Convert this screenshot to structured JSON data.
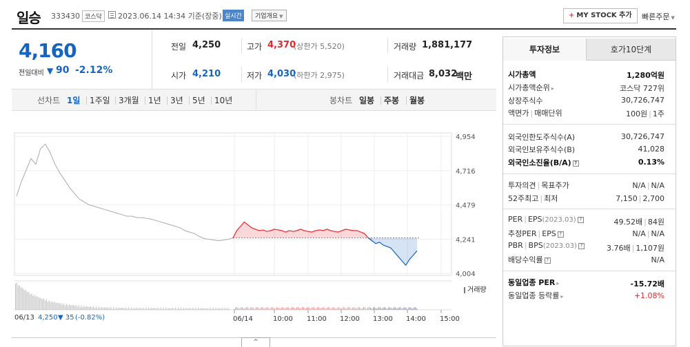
{
  "header": {
    "name": "일승",
    "code": "333430",
    "market": "코스닥",
    "datetime": "2023.06.14 14:34 기준(장중)",
    "realtime": "실시간",
    "corp_info": "기업개요",
    "mystock": "MY STOCK 추가",
    "quick_order": "빠른주문"
  },
  "price": {
    "now": "4,160",
    "prev_label": "전일대비",
    "arrow": "▼",
    "change": "90",
    "change_pct": "-2.12%",
    "color_down": "#1565c0",
    "color_up": "#e5262a"
  },
  "summary": {
    "prev_close": {
      "label": "전일",
      "value": "4,250"
    },
    "high": {
      "label": "고가",
      "value": "4,370",
      "sub": "(상한가 5,520)"
    },
    "volume": {
      "label": "거래량",
      "value": "1,881,177"
    },
    "open": {
      "label": "시가",
      "value": "4,210"
    },
    "low": {
      "label": "저가",
      "value": "4,030",
      "sub": "(하한가 2,975)"
    },
    "amount": {
      "label": "거래대금",
      "value": "8,032",
      "unit": "백만"
    }
  },
  "chart_tabs": {
    "line_label": "선차트",
    "line": [
      "1일",
      "1주일",
      "3개월",
      "1년",
      "3년",
      "5년",
      "10년"
    ],
    "selected": "1일",
    "candle_label": "봉차트",
    "candle": [
      "일봉",
      "주봉",
      "월봉"
    ]
  },
  "chart_data": {
    "type": "line",
    "y_ticks": [
      "4,954",
      "4,716",
      "4,479",
      "4,241",
      "4,004"
    ],
    "ylim": [
      4004,
      4954
    ],
    "reference": 4250,
    "x_ticks": [
      "06/13",
      "06/14",
      "10:00",
      "11:00",
      "12:00",
      "13:00",
      "14:00",
      "15:00"
    ],
    "volume_label": "거래량",
    "prev_day_note": "06/13 4,250 ▼35 (-0.82%)",
    "prev_day_close": "4,250",
    "prev_day_change": "▼ 35",
    "prev_day_pct": "(-0.82%)",
    "prev_day_series": [
      4540,
      4640,
      4720,
      4800,
      4760,
      4870,
      4900,
      4840,
      4760,
      4700,
      4650,
      4600,
      4560,
      4520,
      4500,
      4480,
      4470,
      4460,
      4450,
      4440,
      4430,
      4420,
      4410,
      4400,
      4400,
      4390,
      4390,
      4385,
      4380,
      4370,
      4360,
      4350,
      4340,
      4330,
      4320,
      4300,
      4290,
      4280,
      4260,
      4245,
      4240,
      4235,
      4230,
      4235,
      4240,
      4250
    ],
    "today_series": [
      4250,
      4300,
      4330,
      4360,
      4340,
      4320,
      4310,
      4300,
      4305,
      4295,
      4300,
      4310,
      4305,
      4300,
      4290,
      4300,
      4295,
      4300,
      4310,
      4300,
      4295,
      4290,
      4300,
      4305,
      4300,
      4310,
      4300,
      4295,
      4290,
      4300,
      4310,
      4305,
      4300,
      4300,
      4290,
      4280,
      4250,
      4230,
      4210,
      4220,
      4200,
      4190,
      4180,
      4150,
      4120,
      4090,
      4060,
      4100,
      4130,
      4160
    ]
  },
  "panel": {
    "tab_invest": "투자정보",
    "tab_hoga": "호가10단계",
    "rows": {
      "market_cap": {
        "label": "시가총액",
        "value": "1,280억원"
      },
      "cap_rank": {
        "label": "시가총액순위",
        "value": "코스닥 727위"
      },
      "shares": {
        "label": "상장주식수",
        "value": "30,726,747"
      },
      "par": {
        "label": "액면가",
        "label2": "매매단위",
        "value": "100원",
        "value2": "1주"
      },
      "foreign_limit": {
        "label": "외국인한도주식수(A)",
        "value": "30,726,747"
      },
      "foreign_hold": {
        "label": "외국인보유주식수(B)",
        "value": "41,028"
      },
      "foreign_ratio": {
        "label": "외국인소진율(B/A)",
        "value": "0.13%"
      },
      "opinion": {
        "label": "투자의견",
        "label2": "목표주가",
        "value": "N/A",
        "value2": "N/A"
      },
      "week52": {
        "label": "52주최고",
        "label2": "최저",
        "value": "7,150",
        "value2": "2,700"
      },
      "per": {
        "label": "PER",
        "label2": "EPS",
        "note": "(2023.03)",
        "value": "49.52배",
        "value2": "84원"
      },
      "est_per": {
        "label": "추정PER",
        "label2": "EPS",
        "value": "N/A",
        "value2": "N/A"
      },
      "pbr": {
        "label": "PBR",
        "label2": "BPS",
        "note": "(2023.03)",
        "value": "3.76배",
        "value2": "1,107원"
      },
      "dividend": {
        "label": "배당수익률",
        "value": "N/A"
      },
      "sector_per": {
        "label": "동일업종 PER",
        "value": "-15.72배"
      },
      "sector_rate": {
        "label": "동일업종 등락률",
        "value": "+1.08%"
      }
    }
  },
  "toggle": "^"
}
